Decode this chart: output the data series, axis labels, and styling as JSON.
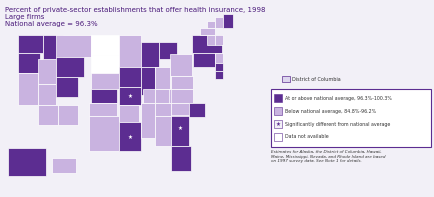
{
  "title_line1": "Percent of private-sector establishments that offer health insurance, 1998",
  "title_line2": "Large firms",
  "title_line3": "National average = 96.3%",
  "bg_color": "#f2f0f7",
  "color_above": "#5c2d91",
  "color_below": "#c9b3e0",
  "color_dc": "#ddd6ee",
  "color_unavailable": "#ffffff",
  "title_color": "#4a1a7a",
  "border_color": "#ffffff",
  "legend_border_color": "#5c2d91",
  "legend_above_label": "At or above national average, 96.3%-100.3%",
  "legend_below_label": "Below national average, 84.8%-96.2%",
  "legend_sig_label": "Significantly different from national average",
  "legend_na_label": "Data not available",
  "legend_dc_label": "District of Columbia",
  "footnote": "Estimates for Alaska, the District of Columbia, Hawaii,\nMaine, Mississippi, Nevada, and Rhode Island are based\non 1997 survey data. See Note 1 for details.",
  "star_marker": "★",
  "state_colors": {
    "AL": "#c9b3e0",
    "AK": "#5c2d91",
    "AZ": "#c9b3e0",
    "AR": "#c9b3e0",
    "CA": "#c9b3e0",
    "CO": "#5c2d91",
    "CT": "#c9b3e0",
    "DE": "#5c2d91",
    "FL": "#5c2d91",
    "GA": "#5c2d91",
    "HI": "#c9b3e0",
    "ID": "#5c2d91",
    "IL": "#5c2d91",
    "IN": "#c9b3e0",
    "IA": "#5c2d91",
    "KS": "#5c2d91",
    "KY": "#c9b3e0",
    "LA": "#5c2d91",
    "ME": "#5c2d91",
    "MD": "#5c2d91",
    "MA": "#c9b3e0",
    "MI": "#5c2d91",
    "MN": "#c9b3e0",
    "MS": "#c9b3e0",
    "MO": "#5c2d91",
    "MT": "#c9b3e0",
    "NE": "#c9b3e0",
    "NV": "#c9b3e0",
    "NH": "#c9b3e0",
    "NJ": "#c9b3e0",
    "NM": "#c9b3e0",
    "NY": "#5c2d91",
    "NC": "#c9b3e0",
    "ND": "#ffffff",
    "OH": "#c9b3e0",
    "OK": "#c9b3e0",
    "OR": "#5c2d91",
    "PA": "#5c2d91",
    "RI": "#c9b3e0",
    "SC": "#5c2d91",
    "SD": "#ffffff",
    "TN": "#c9b3e0",
    "TX": "#c9b3e0",
    "UT": "#c9b3e0",
    "VT": "#c9b3e0",
    "VA": "#c9b3e0",
    "WA": "#5c2d91",
    "WV": "#c9b3e0",
    "WI": "#5c2d91",
    "WY": "#5c2d91",
    "DC": "#ddd6ee"
  },
  "star_states": [
    "MO",
    "GA"
  ]
}
